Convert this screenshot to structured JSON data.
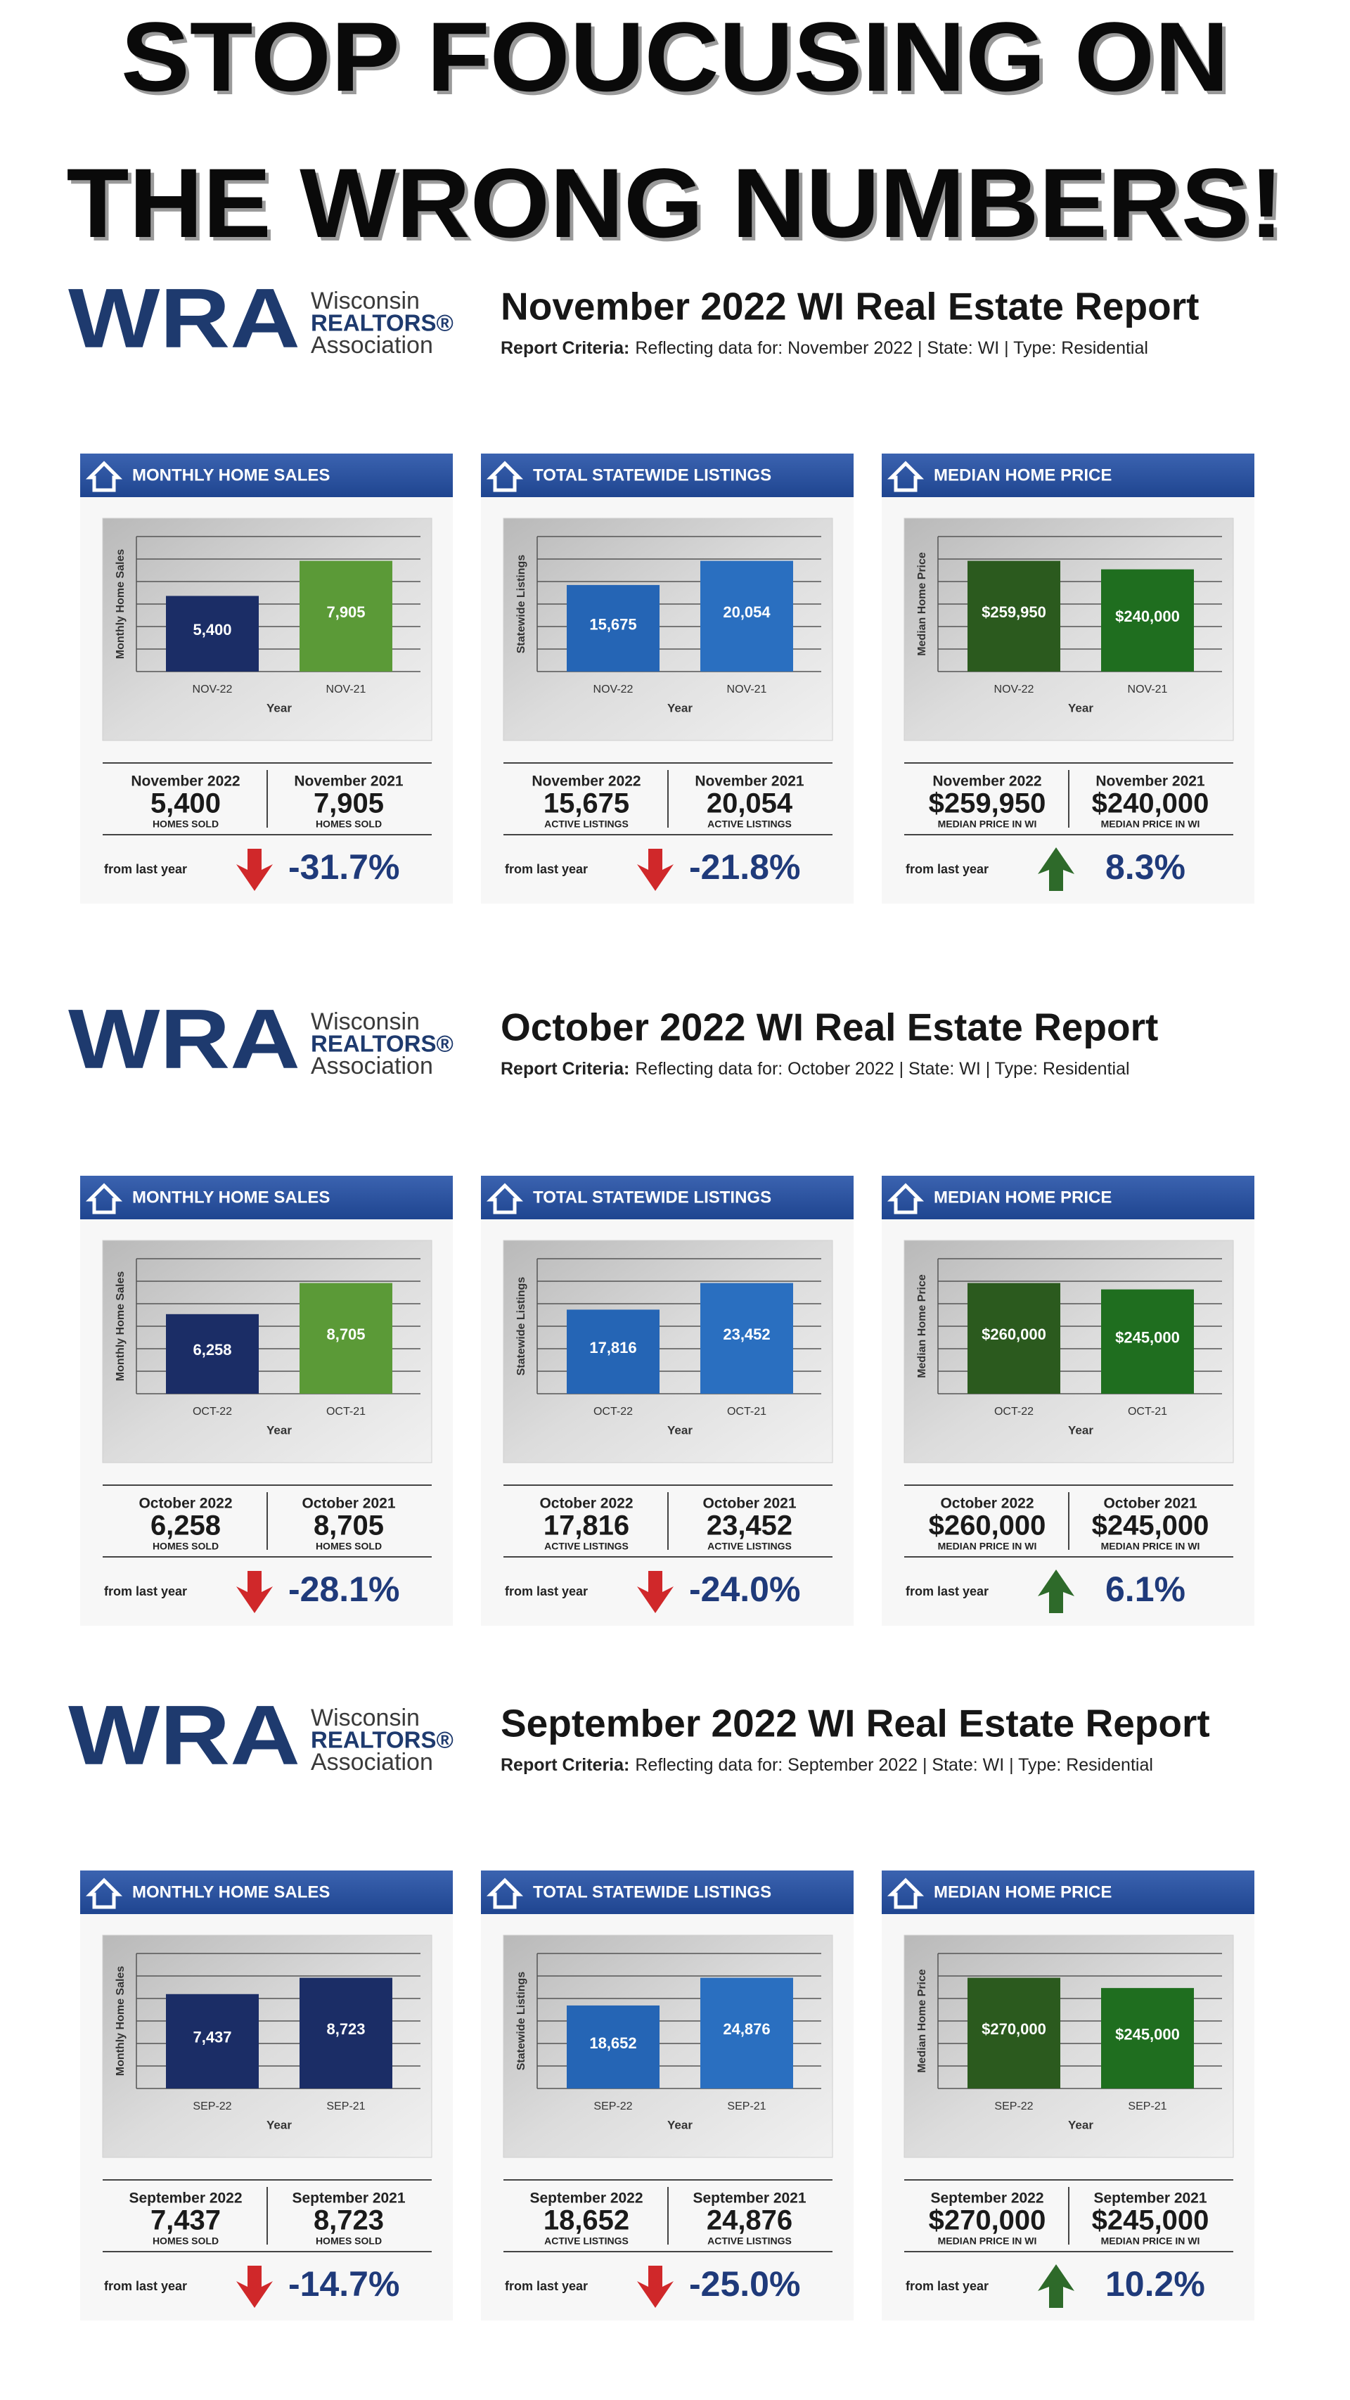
{
  "header": {
    "lines": [
      "STOP FOUCUSING ON",
      "THE WRONG NUMBERS!"
    ]
  },
  "reports": [
    {
      "logo": {
        "mark": "WRA",
        "line1": "Wisconsin",
        "line2": "REALTORS®",
        "line3": "Association"
      },
      "title": "November 2022 WI Real Estate Report",
      "criteria_label": "Report Criteria:",
      "criteria": "Reflecting data for: November 2022 | State: WI | Type: Residential",
      "panels": [
        {
          "label": "MONTHLY HOME SALES",
          "chart": {
            "y_label": "Monthly Home Sales",
            "x_label": "Year",
            "categories": [
              "NOV-22",
              "NOV-21"
            ],
            "values": [
              5400,
              7905
            ],
            "value_labels": [
              "5,400",
              "7,905"
            ],
            "colors": [
              "#1b2d66",
              "#5b9a37"
            ]
          },
          "summary": [
            {
              "period": "November 2022",
              "unit": "HOMES SOLD"
            },
            {
              "period": "November 2021",
              "unit": "HOMES SOLD"
            }
          ],
          "from_label": "from last year",
          "change": "-31.7%",
          "arrow": "down"
        },
        {
          "label": "TOTAL STATEWIDE LISTINGS",
          "chart": {
            "y_label": "Statewide Listings",
            "x_label": "Year",
            "categories": [
              "NOV-22",
              "NOV-21"
            ],
            "values": [
              15675,
              20054
            ],
            "value_labels": [
              "15,675",
              "20,054"
            ],
            "colors": [
              "#2565b5",
              "#2a6fc0"
            ]
          },
          "summary": [
            {
              "period": "November 2022",
              "unit": "ACTIVE LISTINGS"
            },
            {
              "period": "November 2021",
              "unit": "ACTIVE LISTINGS"
            }
          ],
          "from_label": "from last year",
          "change": "-21.8%",
          "arrow": "down"
        },
        {
          "label": "MEDIAN HOME PRICE",
          "chart": {
            "y_label": "Median Home Price",
            "x_label": "Year",
            "categories": [
              "NOV-22",
              "NOV-21"
            ],
            "values": [
              259950,
              240000
            ],
            "value_labels": [
              "$259,950",
              "$240,000"
            ],
            "colors": [
              "#2b5a1e",
              "#1f6e1f"
            ]
          },
          "summary": [
            {
              "period": "November 2022",
              "unit": "MEDIAN PRICE IN WI"
            },
            {
              "period": "November 2021",
              "unit": "MEDIAN PRICE IN WI"
            }
          ],
          "from_label": "from last year",
          "change": "8.3%",
          "arrow": "up"
        }
      ]
    },
    {
      "logo": {
        "mark": "WRA",
        "line1": "Wisconsin",
        "line2": "REALTORS®",
        "line3": "Association"
      },
      "title": "October 2022 WI Real Estate Report",
      "criteria_label": "Report Criteria:",
      "criteria": "Reflecting data for: October 2022 | State: WI | Type: Residential",
      "panels": [
        {
          "label": "MONTHLY HOME SALES",
          "chart": {
            "y_label": "Monthly Home Sales",
            "x_label": "Year",
            "categories": [
              "OCT-22",
              "OCT-21"
            ],
            "values": [
              6258,
              8705
            ],
            "value_labels": [
              "6,258",
              "8,705"
            ],
            "colors": [
              "#1b2d66",
              "#5b9a37"
            ]
          },
          "summary": [
            {
              "period": "October 2022",
              "unit": "HOMES SOLD"
            },
            {
              "period": "October 2021",
              "unit": "HOMES SOLD"
            }
          ],
          "from_label": "from last year",
          "change": "-28.1%",
          "arrow": "down"
        },
        {
          "label": "TOTAL STATEWIDE LISTINGS",
          "chart": {
            "y_label": "Statewide Listings",
            "x_label": "Year",
            "categories": [
              "OCT-22",
              "OCT-21"
            ],
            "values": [
              17816,
              23452
            ],
            "value_labels": [
              "17,816",
              "23,452"
            ],
            "colors": [
              "#2565b5",
              "#2a6fc0"
            ]
          },
          "summary": [
            {
              "period": "October 2022",
              "unit": "ACTIVE LISTINGS"
            },
            {
              "period": "October 2021",
              "unit": "ACTIVE LISTINGS"
            }
          ],
          "from_label": "from last year",
          "change": "-24.0%",
          "arrow": "down"
        },
        {
          "label": "MEDIAN HOME PRICE",
          "chart": {
            "y_label": "Median Home Price",
            "x_label": "Year",
            "categories": [
              "OCT-22",
              "OCT-21"
            ],
            "values": [
              260000,
              245000
            ],
            "value_labels": [
              "$260,000",
              "$245,000"
            ],
            "colors": [
              "#2b5a1e",
              "#1f6e1f"
            ]
          },
          "summary": [
            {
              "period": "October 2022",
              "unit": "MEDIAN PRICE IN WI"
            },
            {
              "period": "October 2021",
              "unit": "MEDIAN PRICE IN WI"
            }
          ],
          "from_label": "from last year",
          "change": "6.1%",
          "arrow": "up"
        }
      ]
    },
    {
      "logo": {
        "mark": "WRA",
        "line1": "Wisconsin",
        "line2": "REALTORS®",
        "line3": "Association"
      },
      "title": "September 2022 WI Real Estate Report",
      "criteria_label": "Report Criteria:",
      "criteria": "Reflecting data for: September 2022 | State: WI | Type: Residential",
      "panels": [
        {
          "label": "MONTHLY HOME SALES",
          "chart": {
            "y_label": "Monthly Home Sales",
            "x_label": "Year",
            "categories": [
              "SEP-22",
              "SEP-21"
            ],
            "values": [
              7437,
              8723
            ],
            "value_labels": [
              "7,437",
              "8,723"
            ],
            "colors": [
              "#1b2d66",
              "#1b2d66"
            ]
          },
          "summary": [
            {
              "period": "September 2022",
              "unit": "HOMES SOLD"
            },
            {
              "period": "September 2021",
              "unit": "HOMES SOLD"
            }
          ],
          "from_label": "from last year",
          "change": "-14.7%",
          "arrow": "down"
        },
        {
          "label": "TOTAL STATEWIDE LISTINGS",
          "chart": {
            "y_label": "Statewide Listings",
            "x_label": "Year",
            "categories": [
              "SEP-22",
              "SEP-21"
            ],
            "values": [
              18652,
              24876
            ],
            "value_labels": [
              "18,652",
              "24,876"
            ],
            "colors": [
              "#2565b5",
              "#2a6fc0"
            ]
          },
          "summary": [
            {
              "period": "September 2022",
              "unit": "ACTIVE LISTINGS"
            },
            {
              "period": "September 2021",
              "unit": "ACTIVE LISTINGS"
            }
          ],
          "from_label": "from last year",
          "change": "-25.0%",
          "arrow": "down"
        },
        {
          "label": "MEDIAN HOME PRICE",
          "chart": {
            "y_label": "Median Home Price",
            "x_label": "Year",
            "categories": [
              "SEP-22",
              "SEP-21"
            ],
            "values": [
              270000,
              245000
            ],
            "value_labels": [
              "$270,000",
              "$245,000"
            ],
            "colors": [
              "#2b5a1e",
              "#1f6e1f"
            ]
          },
          "summary": [
            {
              "period": "September 2022",
              "unit": "MEDIAN PRICE IN WI"
            },
            {
              "period": "September 2021",
              "unit": "MEDIAN PRICE IN WI"
            }
          ],
          "from_label": "from last year",
          "change": "10.2%",
          "arrow": "up"
        }
      ]
    }
  ]
}
